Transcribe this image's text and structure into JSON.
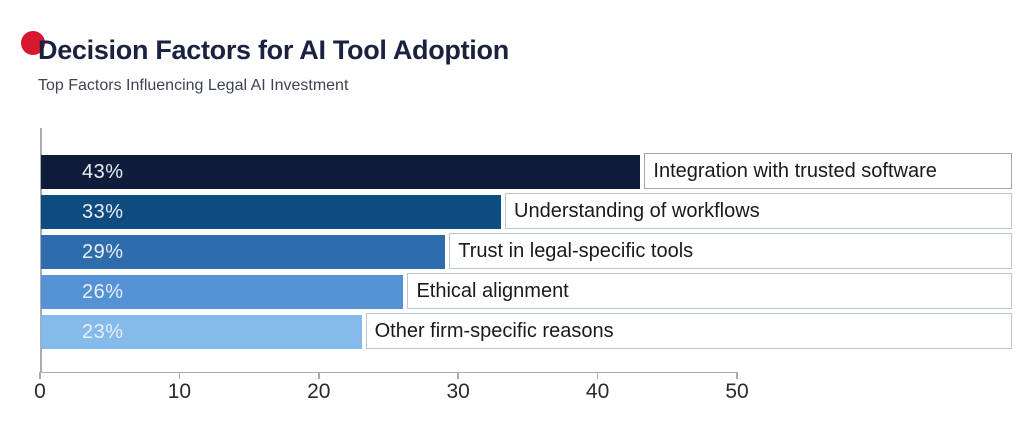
{
  "header": {
    "title": "Decision Factors for AI Tool Adoption",
    "subtitle": "Top Factors Influencing Legal AI Investment"
  },
  "colors": {
    "background": "#ffffff",
    "brand_dot": "#d7182f",
    "title_text": "#1b2240",
    "subtitle_text": "#3d4453",
    "axis_line": "#a9adb2",
    "tick_label_text": "#2b2b2b",
    "bar_value_text": "#e9eef7",
    "category_text": "#1a1a1a",
    "category_box_bg": "#ffffff"
  },
  "chart_data": {
    "type": "bar",
    "orientation": "horizontal",
    "title": "Decision Factors for AI Tool Adoption",
    "subtitle": "Top Factors Influencing Legal AI Investment",
    "categories": [
      "Integration with trusted software",
      "Understanding of workflows",
      "Trust in legal-specific tools",
      "Ethical alignment",
      "Other firm-specific reasons"
    ],
    "values": [
      43,
      33,
      29,
      26,
      23
    ],
    "value_labels": [
      "43%",
      "33%",
      "29%",
      "26%",
      "23%"
    ],
    "bar_colors": [
      "#101d3a",
      "#0e4b7f",
      "#2e6cab",
      "#5492d5",
      "#85bbea"
    ],
    "category_box_border_colors": [
      "#9fa8b0",
      "#bac7d3",
      "#bac7d3",
      "#bac7d3",
      "#bac7d3"
    ],
    "xlim": [
      0,
      50
    ],
    "x_ticks": [
      0,
      10,
      20,
      30,
      40,
      50
    ],
    "grid": false,
    "legend": false,
    "value_label_position": "inside-left",
    "category_label_position": "outside-right-box"
  }
}
